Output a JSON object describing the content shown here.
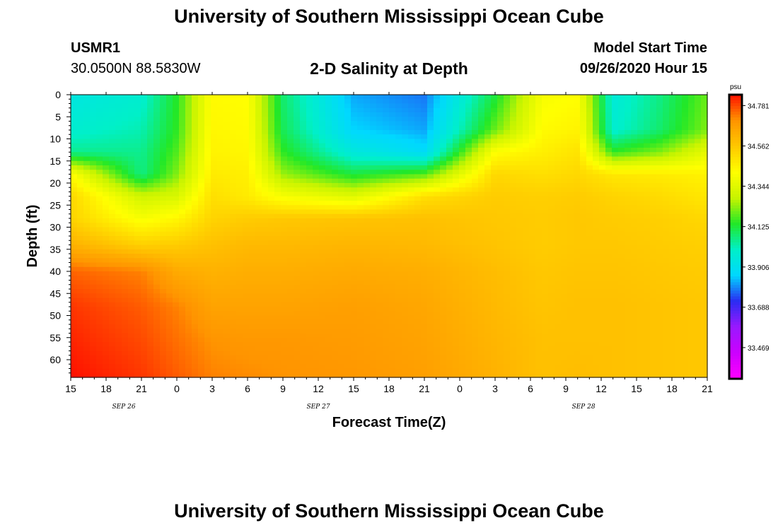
{
  "page": {
    "title_top": "University of Southern Mississippi Ocean Cube",
    "title_bottom": "University of Southern Mississippi Ocean Cube",
    "station_id": "USMR1",
    "station_coords": "30.0500N 88.5830W",
    "chart_title": "2-D Salinity at Depth",
    "start_label": "Model Start Time",
    "start_value": "09/26/2020 Hour 15"
  },
  "colors": {
    "palette": [
      "#ff00ff",
      "#cc00ff",
      "#9a18ff",
      "#2a2cf2",
      "#00d8ff",
      "#00f0c8",
      "#22e828",
      "#c8f400",
      "#ffff00",
      "#ffc800",
      "#ff9400",
      "#ff1000"
    ]
  },
  "chart_data": {
    "type": "heatmap",
    "title": "2-D Salinity at Depth",
    "xlabel": "Forecast Time(Z)",
    "ylabel": "Depth (ft)",
    "x_tick_labels": [
      "15",
      "18",
      "21",
      "0",
      "3",
      "6",
      "9",
      "12",
      "15",
      "18",
      "21",
      "0",
      "3",
      "6",
      "9",
      "12",
      "15",
      "18",
      "21"
    ],
    "x_hours_since_start": [
      0,
      3,
      6,
      9,
      12,
      15,
      18,
      21,
      24,
      27,
      30,
      33,
      36,
      39,
      42,
      45,
      48,
      51,
      54
    ],
    "date_labels": [
      {
        "text": "SEP 26",
        "hour": 4.5
      },
      {
        "text": "SEP 27",
        "hour": 21
      },
      {
        "text": "SEP 28",
        "hour": 43.5
      }
    ],
    "y_tick_labels": [
      "0",
      "5",
      "10",
      "15",
      "20",
      "25",
      "30",
      "35",
      "40",
      "45",
      "50",
      "55",
      "60"
    ],
    "y_range": [
      0,
      64
    ],
    "colorbar": {
      "unit": "psu",
      "min": 33.3,
      "max": 34.84,
      "tick_values": [
        "34.781",
        "34.562",
        "34.344",
        "34.125",
        "33.906",
        "33.688",
        "33.469"
      ]
    },
    "grid_times_h": [
      0,
      6,
      9,
      12,
      15,
      18,
      24,
      30,
      36,
      40,
      43,
      46,
      50,
      54
    ],
    "grid_depths_ft": [
      0,
      8,
      13,
      18,
      23,
      28,
      34,
      40,
      48,
      56,
      64
    ],
    "salinity_psu": [
      [
        33.94,
        33.98,
        34.05,
        34.42,
        34.52,
        34.53,
        34.62,
        34.75,
        34.8,
        34.82,
        34.84
      ],
      [
        33.98,
        34.02,
        34.05,
        34.06,
        34.3,
        34.4,
        34.54,
        34.72,
        34.76,
        34.78,
        34.8
      ],
      [
        34.14,
        34.15,
        34.18,
        34.22,
        34.32,
        34.44,
        34.55,
        34.64,
        34.72,
        34.74,
        34.76
      ],
      [
        34.43,
        34.44,
        34.45,
        34.47,
        34.5,
        34.53,
        34.58,
        34.62,
        34.66,
        34.7,
        34.72
      ],
      [
        34.42,
        34.43,
        34.44,
        34.46,
        34.47,
        34.55,
        34.6,
        34.63,
        34.66,
        34.69,
        34.71
      ],
      [
        34.08,
        34.1,
        34.15,
        34.24,
        34.4,
        34.56,
        34.6,
        34.63,
        34.66,
        34.69,
        34.7
      ],
      [
        33.82,
        33.86,
        33.95,
        34.12,
        34.34,
        34.57,
        34.61,
        34.64,
        34.67,
        34.68,
        34.69
      ],
      [
        33.78,
        33.82,
        33.88,
        34.18,
        34.5,
        34.58,
        34.6,
        34.63,
        34.65,
        34.66,
        34.67
      ],
      [
        34.12,
        34.2,
        34.42,
        34.52,
        34.55,
        34.56,
        34.57,
        34.59,
        34.6,
        34.61,
        34.62
      ],
      [
        34.4,
        34.43,
        34.46,
        34.5,
        34.54,
        34.55,
        34.55,
        34.56,
        34.57,
        34.58,
        34.58
      ],
      [
        34.42,
        34.45,
        34.49,
        34.52,
        34.55,
        34.56,
        34.56,
        34.57,
        34.58,
        34.58,
        34.59
      ],
      [
        33.96,
        33.98,
        34.15,
        34.48,
        34.53,
        34.55,
        34.56,
        34.57,
        34.58,
        34.58,
        34.58
      ],
      [
        34.06,
        34.08,
        34.22,
        34.47,
        34.51,
        34.54,
        34.55,
        34.56,
        34.57,
        34.57,
        34.57
      ],
      [
        34.2,
        34.22,
        34.36,
        34.45,
        34.48,
        34.52,
        34.54,
        34.55,
        34.56,
        34.56,
        34.56
      ]
    ]
  }
}
